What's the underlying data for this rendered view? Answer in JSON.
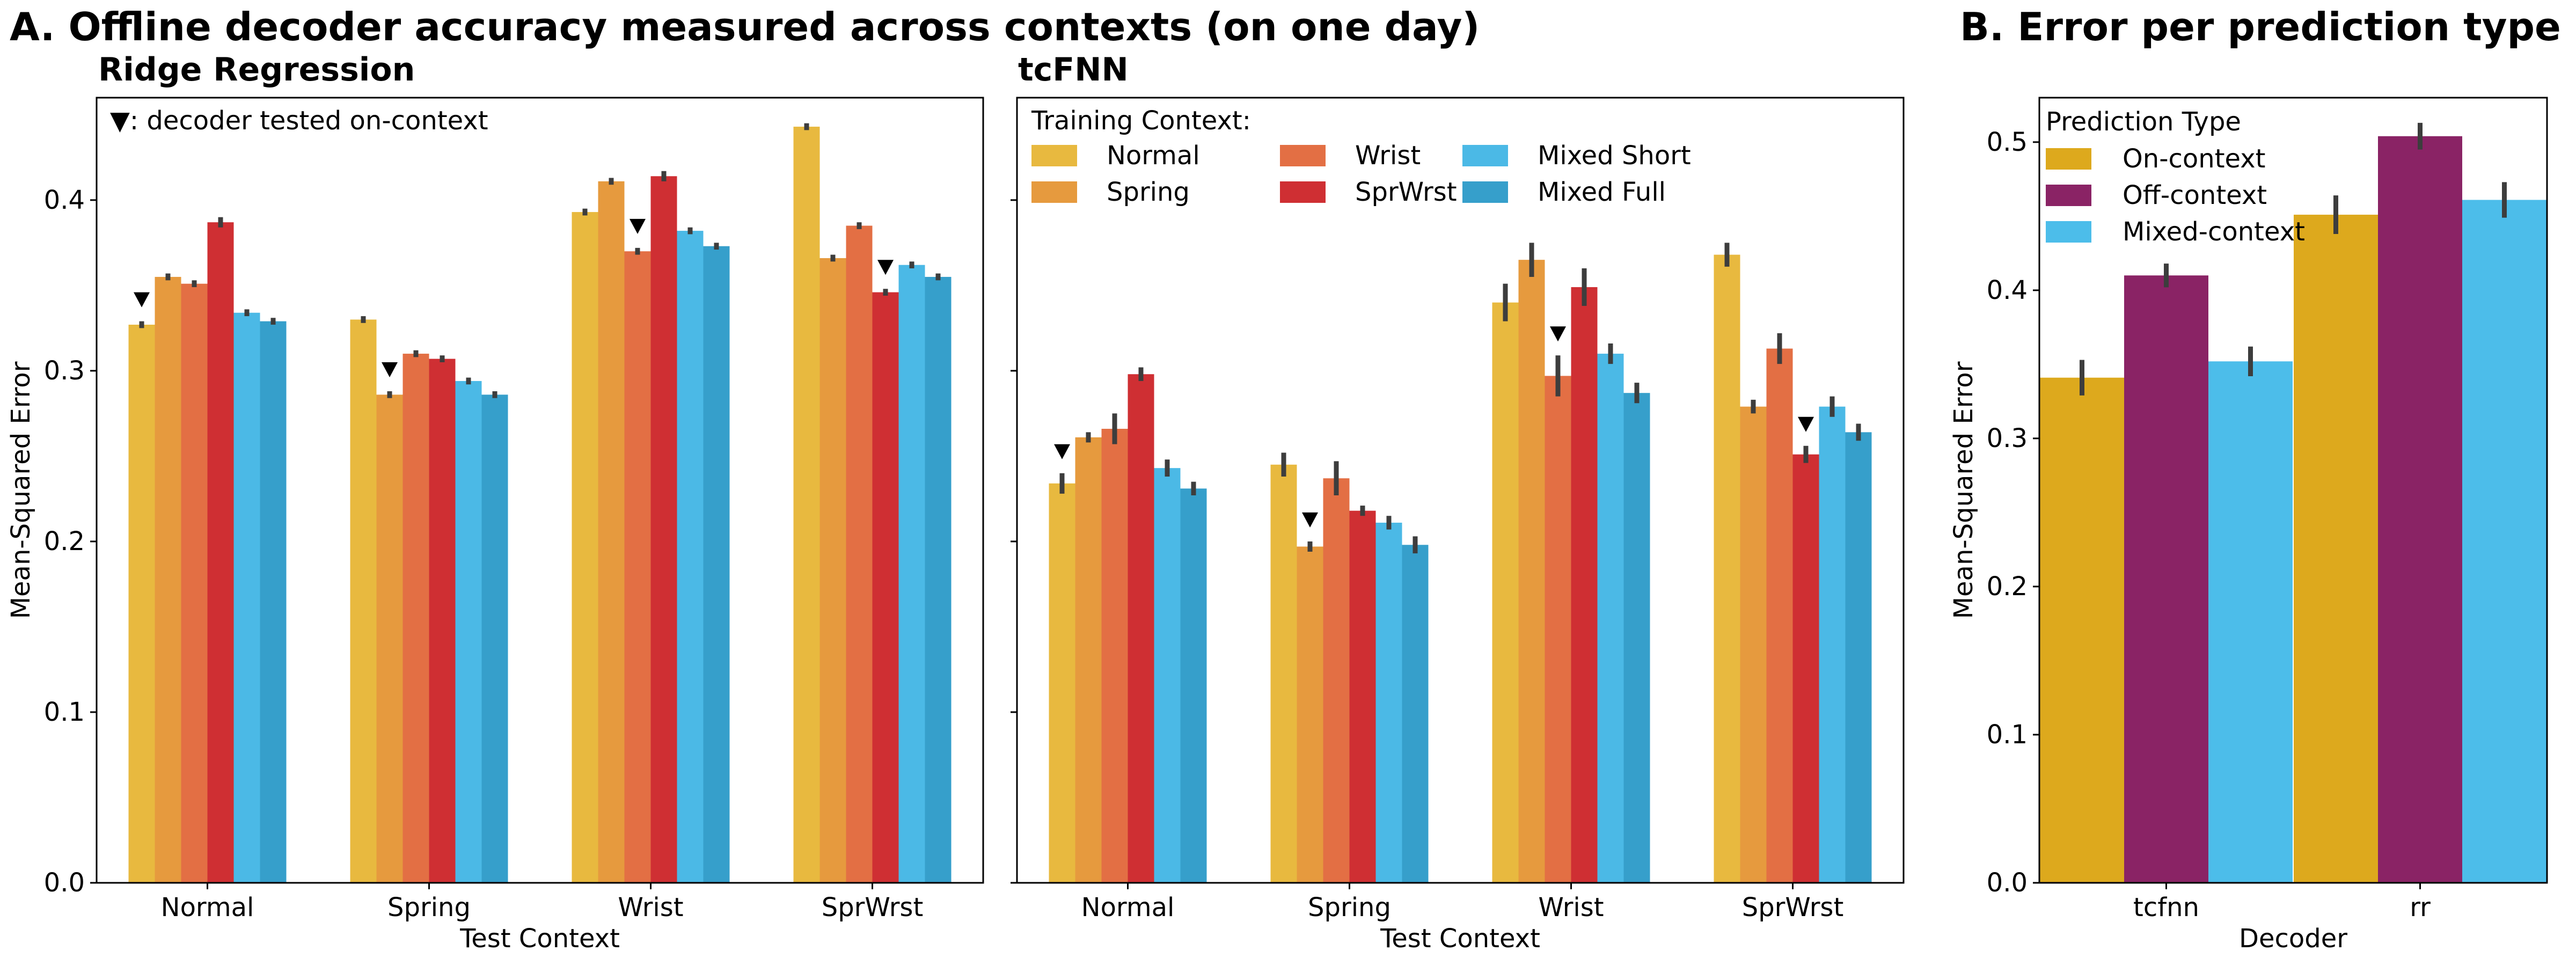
{
  "panel_a": {
    "title": "A. Offline decoder accuracy measured across contexts (on one day)",
    "marker_note": "▼: decoder tested on-context",
    "legend_title": "Training Context:"
  },
  "panel_b": {
    "title": "B. Error per prediction type",
    "legend_title": "Prediction Type"
  },
  "colors": {
    "Normal": "#E8B93F",
    "Spring": "#E69A3E",
    "Wrist": "#E36F44",
    "SprWrst": "#CF2F33",
    "Mixed Short": "#4BB9E6",
    "Mixed Full": "#369FCB",
    "On-context": "#DDA91D",
    "Off-context": "#8A2365",
    "Mixed-context": "#4CBDEA"
  },
  "chart_data": [
    {
      "type": "bar",
      "title": "Ridge Regression",
      "xlabel": "Test Context",
      "ylabel": "Mean-Squared Error",
      "ylim": [
        0,
        0.46
      ],
      "yticks": [
        "0.0",
        "0.1",
        "0.2",
        "0.3",
        "0.4"
      ],
      "categories": [
        "Normal",
        "Spring",
        "Wrist",
        "SprWrst"
      ],
      "on_context_marker": true,
      "series": [
        {
          "name": "Normal",
          "values": [
            0.327,
            0.33,
            0.393,
            0.443
          ],
          "errors": [
            0.002,
            0.002,
            0.002,
            0.002
          ]
        },
        {
          "name": "Spring",
          "values": [
            0.355,
            0.286,
            0.411,
            0.366
          ],
          "errors": [
            0.002,
            0.002,
            0.002,
            0.002
          ]
        },
        {
          "name": "Wrist",
          "values": [
            0.351,
            0.31,
            0.37,
            0.385
          ],
          "errors": [
            0.002,
            0.002,
            0.002,
            0.002
          ]
        },
        {
          "name": "SprWrst",
          "values": [
            0.387,
            0.307,
            0.414,
            0.346
          ],
          "errors": [
            0.003,
            0.002,
            0.003,
            0.002
          ]
        },
        {
          "name": "Mixed Short",
          "values": [
            0.334,
            0.294,
            0.382,
            0.362
          ],
          "errors": [
            0.002,
            0.002,
            0.002,
            0.002
          ]
        },
        {
          "name": "Mixed Full",
          "values": [
            0.329,
            0.286,
            0.373,
            0.355
          ],
          "errors": [
            0.002,
            0.002,
            0.002,
            0.002
          ]
        }
      ]
    },
    {
      "type": "bar",
      "title": "tcFNN",
      "xlabel": "Test Context",
      "ylabel": "",
      "ylim": [
        0,
        0.46
      ],
      "yticks": [
        "",
        "",
        "",
        "",
        ""
      ],
      "categories": [
        "Normal",
        "Spring",
        "Wrist",
        "SprWrst"
      ],
      "on_context_marker": true,
      "series": [
        {
          "name": "Normal",
          "values": [
            0.234,
            0.245,
            0.34,
            0.368
          ],
          "errors": [
            0.006,
            0.007,
            0.011,
            0.007
          ]
        },
        {
          "name": "Spring",
          "values": [
            0.261,
            0.197,
            0.365,
            0.279
          ],
          "errors": [
            0.003,
            0.003,
            0.01,
            0.004
          ]
        },
        {
          "name": "Wrist",
          "values": [
            0.266,
            0.237,
            0.297,
            0.313
          ],
          "errors": [
            0.009,
            0.01,
            0.012,
            0.009
          ]
        },
        {
          "name": "SprWrst",
          "values": [
            0.298,
            0.218,
            0.349,
            0.251
          ],
          "errors": [
            0.004,
            0.003,
            0.011,
            0.005
          ]
        },
        {
          "name": "Mixed Short",
          "values": [
            0.243,
            0.211,
            0.31,
            0.279
          ],
          "errors": [
            0.005,
            0.004,
            0.006,
            0.006
          ]
        },
        {
          "name": "Mixed Full",
          "values": [
            0.231,
            0.198,
            0.287,
            0.264
          ],
          "errors": [
            0.004,
            0.005,
            0.006,
            0.005
          ]
        }
      ]
    },
    {
      "type": "bar",
      "title": "",
      "xlabel": "Decoder",
      "ylabel": "Mean-Squared Error",
      "ylim": [
        0,
        0.53
      ],
      "yticks": [
        "0.0",
        "0.1",
        "0.2",
        "0.3",
        "0.4",
        "0.5"
      ],
      "categories": [
        "tcfnn",
        "rr"
      ],
      "on_context_marker": false,
      "series": [
        {
          "name": "On-context",
          "values": [
            0.341,
            0.451
          ],
          "errors": [
            0.012,
            0.013
          ]
        },
        {
          "name": "Off-context",
          "values": [
            0.41,
            0.504
          ],
          "errors": [
            0.008,
            0.009
          ]
        },
        {
          "name": "Mixed-context",
          "values": [
            0.352,
            0.461
          ],
          "errors": [
            0.01,
            0.012
          ]
        }
      ]
    }
  ]
}
